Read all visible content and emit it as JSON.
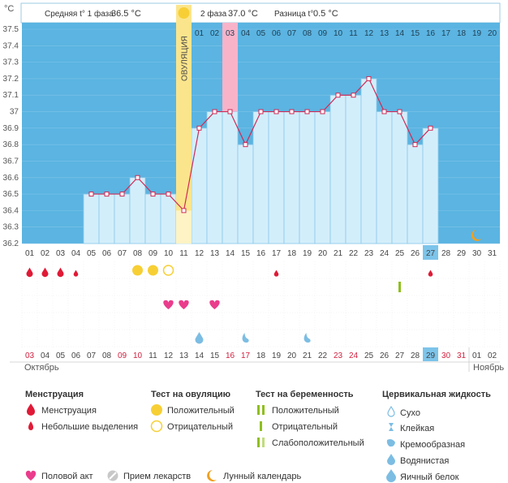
{
  "header": {
    "unit": "°C",
    "phase1_label": "Средняя t° 1 фаза",
    "phase1_value": "36.5 °C",
    "phase2_label": "2 фаза",
    "phase2_value": "37.0 °C",
    "diff_label": "Разница t°",
    "diff_value": "0.5 °C",
    "ovulation_label": "ОВУЛЯЦИЯ"
  },
  "chart_data": {
    "type": "line",
    "title": "",
    "ylabel": "°C",
    "ylim": [
      36.2,
      37.5
    ],
    "y_ticks": [
      "37.5",
      "37.4",
      "37.3",
      "37.2",
      "37.1",
      "37",
      "36.9",
      "36.8",
      "36.7",
      "36.6",
      "36.5",
      "36.4",
      "36.3",
      "36.2"
    ],
    "cycle_days": [
      "01",
      "02",
      "03",
      "04",
      "05",
      "06",
      "07",
      "08",
      "09",
      "10",
      "11",
      "12",
      "13",
      "14",
      "15",
      "16",
      "17",
      "18",
      "19",
      "20",
      "21",
      "22",
      "23",
      "24",
      "25",
      "26",
      "27",
      "28",
      "29",
      "30",
      "31"
    ],
    "phase2_days": [
      "01",
      "02",
      "03",
      "04",
      "05",
      "06",
      "07",
      "08",
      "09",
      "10",
      "11",
      "12",
      "13",
      "14",
      "15",
      "16",
      "17",
      "18",
      "19",
      "20"
    ],
    "temperatures": [
      null,
      null,
      null,
      null,
      36.5,
      36.5,
      36.5,
      36.6,
      36.5,
      36.5,
      36.4,
      36.9,
      37.0,
      37.0,
      36.8,
      37.0,
      37.0,
      37.0,
      37.0,
      37.0,
      37.1,
      37.1,
      37.2,
      37.0,
      37.0,
      36.8,
      36.9,
      null,
      null,
      null,
      null
    ],
    "ovulation_day_index": 10,
    "highlight_phase2_day_index": 13,
    "current_day_index": 26,
    "dates": [
      "03",
      "04",
      "05",
      "06",
      "07",
      "08",
      "09",
      "10",
      "11",
      "12",
      "13",
      "14",
      "15",
      "16",
      "17",
      "18",
      "19",
      "20",
      "21",
      "22",
      "23",
      "24",
      "25",
      "26",
      "27",
      "28",
      "29",
      "30",
      "31",
      "01",
      "02"
    ],
    "weekend_date_indices": [
      0,
      6,
      7,
      13,
      14,
      20,
      21,
      27,
      28
    ],
    "month_october": "Октябрь",
    "month_november": "Ноябрь",
    "markers": {
      "menstruation": [
        0,
        1,
        2
      ],
      "light_spotting": [
        3,
        16,
        26
      ],
      "ovulation_positive": [
        7,
        8
      ],
      "ovulation_negative": [
        9
      ],
      "pregnancy_test_positive": [
        24
      ],
      "intercourse": [
        9,
        10,
        12
      ],
      "cervical_egg_white": [
        11
      ],
      "cervical_watery": [
        14,
        18
      ],
      "lunar": [
        29
      ]
    }
  },
  "legend": {
    "menstruation_title": "Менструация",
    "menstruation": "Менструация",
    "light_spotting": "Небольшие выделения",
    "ovulation_title": "Тест на овуляцию",
    "positive": "Положительный",
    "negative": "Отрицательный",
    "pregnancy_title": "Тест на беременность",
    "preg_positive": "Положительный",
    "preg_negative": "Отрицательный",
    "preg_weak": "Слабоположительный",
    "cervical_title": "Цервикальная жидкость",
    "dry": "Сухо",
    "sticky": "Клейкая",
    "creamy": "Кремообразная",
    "watery": "Водянистая",
    "egg_white": "Яичный белок",
    "intercourse": "Половой акт",
    "medication": "Прием лекарств",
    "lunar_calendar": "Лунный календарь"
  },
  "colors": {
    "area_top": "#5bb4e1",
    "bar_fill": "#d3eefb",
    "bar_stroke": "#8bc9ea",
    "line": "#cf2a56",
    "ovulation": "#fbe58c",
    "ovulation_circle": "#f7cf35",
    "highlight": "#f9b3c9",
    "menstruation": "#e01a36",
    "heart": "#ea3c8c",
    "drop": "#7cbde3",
    "lunar": "#f0a020",
    "weekend": "#d2213f",
    "preg_green": "#8fbf1e",
    "preg_light": "#c0dc7a",
    "grid": "#e6e6e6"
  }
}
